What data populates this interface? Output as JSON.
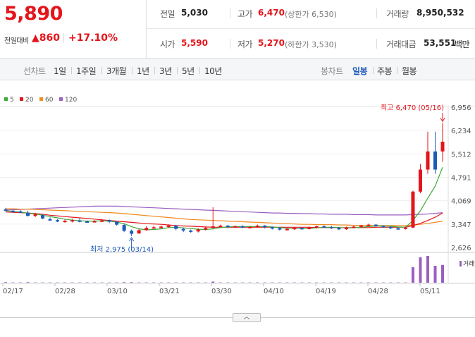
{
  "quote": {
    "price": "5,890",
    "change_label": "전일대비",
    "change_arrow": "▲",
    "change_value": "860",
    "change_pct": "+17.10%"
  },
  "stats": {
    "prev_close_label": "전일",
    "prev_close": "5,030",
    "high_label": "고가",
    "high": "6,470",
    "upper_limit": "(상한가 6,530)",
    "volume_label": "거래량",
    "volume": "8,950,532",
    "open_label": "시가",
    "open": "5,590",
    "low_label": "저가",
    "low": "5,270",
    "lower_limit": "(하한가 3,530)",
    "amount_label": "거래대금",
    "amount": "53,551",
    "amount_unit": "백만"
  },
  "period_bar": {
    "line_label": "선차트",
    "line_options": [
      "1일",
      "1주일",
      "3개월",
      "1년",
      "3년",
      "5년",
      "10년"
    ],
    "candle_label": "봉차트",
    "candle_options": [
      "일봉",
      "주봉",
      "월봉"
    ],
    "active_candle": "일봉"
  },
  "colors": {
    "up": "#e4141b",
    "down": "#1e5bb8",
    "ma5": "#3aaa3a",
    "ma20": "#e4141b",
    "ma60": "#f0891f",
    "ma120": "#9b5fc0"
  },
  "chart_data": {
    "type": "candlestick",
    "legend": [
      "5",
      "20",
      "60",
      "120"
    ],
    "y_ticks": [
      "6,956",
      "6,234",
      "5,512",
      "4,791",
      "4,069",
      "3,347",
      "2,626"
    ],
    "ylim": [
      2626,
      6956
    ],
    "x_ticks": [
      "02/17",
      "02/28",
      "03/10",
      "03/21",
      "03/30",
      "04/10",
      "04/19",
      "04/28",
      "05/11"
    ],
    "annotations": {
      "high": "최고 6,470 (05/16)",
      "low": "최저 2,975 (03/14)"
    },
    "volume_label": "거래",
    "candles": [
      [
        3800,
        3780,
        3850,
        3740
      ],
      [
        3760,
        3730,
        3790,
        3700
      ],
      [
        3740,
        3720,
        3780,
        3690
      ],
      [
        3700,
        3600,
        3760,
        3580
      ],
      [
        3600,
        3650,
        3700,
        3560
      ],
      [
        3620,
        3520,
        3660,
        3500
      ],
      [
        3500,
        3480,
        3560,
        3450
      ],
      [
        3470,
        3440,
        3500,
        3410
      ],
      [
        3420,
        3450,
        3490,
        3390
      ],
      [
        3440,
        3470,
        3510,
        3400
      ],
      [
        3460,
        3430,
        3530,
        3400
      ],
      [
        3430,
        3420,
        3460,
        3390
      ],
      [
        3420,
        3440,
        3470,
        3400
      ],
      [
        3440,
        3460,
        3500,
        3410
      ],
      [
        3470,
        3420,
        3490,
        3380
      ],
      [
        3420,
        3330,
        3450,
        3300
      ],
      [
        3320,
        3140,
        3360,
        3100
      ],
      [
        3140,
        3050,
        3180,
        2975
      ],
      [
        3060,
        3160,
        3200,
        3040
      ],
      [
        3160,
        3230,
        3280,
        3140
      ],
      [
        3230,
        3250,
        3300,
        3200
      ],
      [
        3250,
        3270,
        3310,
        3210
      ],
      [
        3260,
        3300,
        3340,
        3230
      ],
      [
        3300,
        3200,
        3320,
        3160
      ],
      [
        3200,
        3150,
        3240,
        3100
      ],
      [
        3150,
        3120,
        3180,
        3080
      ],
      [
        3120,
        3180,
        3220,
        3090
      ],
      [
        3180,
        3230,
        3270,
        3150
      ],
      [
        3230,
        3280,
        3870,
        3200
      ],
      [
        3280,
        3300,
        3330,
        3250
      ],
      [
        3300,
        3260,
        3320,
        3220
      ],
      [
        3260,
        3280,
        3310,
        3240
      ],
      [
        3280,
        3250,
        3310,
        3220
      ],
      [
        3250,
        3260,
        3290,
        3220
      ],
      [
        3260,
        3300,
        3330,
        3240
      ],
      [
        3300,
        3250,
        3320,
        3210
      ],
      [
        3250,
        3220,
        3270,
        3180
      ],
      [
        3220,
        3180,
        3260,
        3150
      ],
      [
        3180,
        3200,
        3230,
        3150
      ],
      [
        3200,
        3230,
        3260,
        3170
      ],
      [
        3230,
        3200,
        3250,
        3170
      ],
      [
        3200,
        3240,
        3270,
        3180
      ],
      [
        3240,
        3280,
        3300,
        3210
      ],
      [
        3280,
        3260,
        3310,
        3230
      ],
      [
        3260,
        3230,
        3290,
        3200
      ],
      [
        3230,
        3190,
        3260,
        3160
      ],
      [
        3190,
        3240,
        3270,
        3170
      ],
      [
        3240,
        3270,
        3300,
        3220
      ],
      [
        3270,
        3300,
        3320,
        3240
      ],
      [
        3300,
        3330,
        3360,
        3280
      ],
      [
        3330,
        3290,
        3350,
        3260
      ],
      [
        3290,
        3260,
        3310,
        3230
      ],
      [
        3260,
        3220,
        3280,
        3190
      ],
      [
        3220,
        3200,
        3250,
        3180
      ],
      [
        3200,
        3240,
        3270,
        3180
      ],
      [
        3240,
        4350,
        4380,
        3220
      ],
      [
        4350,
        5030,
        5200,
        4300
      ],
      [
        5030,
        5590,
        6200,
        4900
      ],
      [
        5590,
        5030,
        6200,
        4900
      ],
      [
        5590,
        5890,
        6470,
        5270
      ]
    ],
    "ma": {
      "5": [
        3760,
        3740,
        3720,
        3680,
        3660,
        3620,
        3580,
        3540,
        3500,
        3470,
        3450,
        3440,
        3440,
        3450,
        3440,
        3410,
        3360,
        3270,
        3200,
        3170,
        3180,
        3200,
        3240,
        3250,
        3230,
        3210,
        3190,
        3180,
        3200,
        3240,
        3260,
        3270,
        3270,
        3270,
        3270,
        3270,
        3260,
        3240,
        3220,
        3210,
        3210,
        3210,
        3230,
        3250,
        3250,
        3240,
        3230,
        3230,
        3250,
        3270,
        3290,
        3290,
        3280,
        3260,
        3250,
        3460,
        3760,
        4150,
        4520,
        5100
      ],
      "20": [
        3720,
        3710,
        3700,
        3690,
        3670,
        3650,
        3620,
        3600,
        3580,
        3560,
        3540,
        3520,
        3500,
        3480,
        3460,
        3440,
        3420,
        3400,
        3380,
        3360,
        3350,
        3340,
        3320,
        3300,
        3290,
        3280,
        3270,
        3260,
        3250,
        3250,
        3250,
        3250,
        3250,
        3250,
        3250,
        3250,
        3250,
        3250,
        3250,
        3250,
        3250,
        3250,
        3240,
        3240,
        3240,
        3240,
        3240,
        3240,
        3240,
        3240,
        3250,
        3250,
        3250,
        3250,
        3250,
        3300,
        3370,
        3460,
        3560,
        3690
      ],
      "60": [
        3820,
        3820,
        3810,
        3810,
        3800,
        3790,
        3780,
        3770,
        3760,
        3750,
        3740,
        3730,
        3720,
        3710,
        3700,
        3690,
        3670,
        3650,
        3630,
        3610,
        3590,
        3570,
        3550,
        3530,
        3510,
        3490,
        3480,
        3470,
        3460,
        3450,
        3440,
        3430,
        3420,
        3410,
        3400,
        3390,
        3380,
        3370,
        3360,
        3350,
        3340,
        3340,
        3330,
        3330,
        3330,
        3320,
        3320,
        3310,
        3310,
        3300,
        3300,
        3300,
        3300,
        3300,
        3300,
        3320,
        3340,
        3370,
        3400,
        3440
      ],
      "120": [
        3780,
        3790,
        3800,
        3810,
        3820,
        3830,
        3840,
        3850,
        3860,
        3870,
        3880,
        3890,
        3900,
        3900,
        3900,
        3900,
        3890,
        3880,
        3870,
        3860,
        3850,
        3840,
        3830,
        3820,
        3810,
        3800,
        3790,
        3780,
        3770,
        3760,
        3750,
        3740,
        3730,
        3720,
        3710,
        3700,
        3690,
        3690,
        3680,
        3680,
        3670,
        3670,
        3660,
        3660,
        3650,
        3650,
        3650,
        3640,
        3640,
        3640,
        3630,
        3630,
        3630,
        3630,
        3630,
        3640,
        3650,
        3660,
        3680,
        3700
      ]
    },
    "volume": [
      2,
      1,
      1,
      2,
      1,
      1,
      1,
      1,
      1,
      1,
      1,
      1,
      1,
      1,
      1,
      1,
      2,
      2,
      1,
      1,
      1,
      1,
      1,
      1,
      1,
      1,
      1,
      1,
      4,
      1,
      1,
      1,
      1,
      1,
      1,
      1,
      1,
      1,
      1,
      1,
      1,
      1,
      1,
      1,
      1,
      1,
      1,
      1,
      1,
      1,
      1,
      1,
      1,
      1,
      1,
      55,
      90,
      95,
      60,
      63
    ]
  }
}
